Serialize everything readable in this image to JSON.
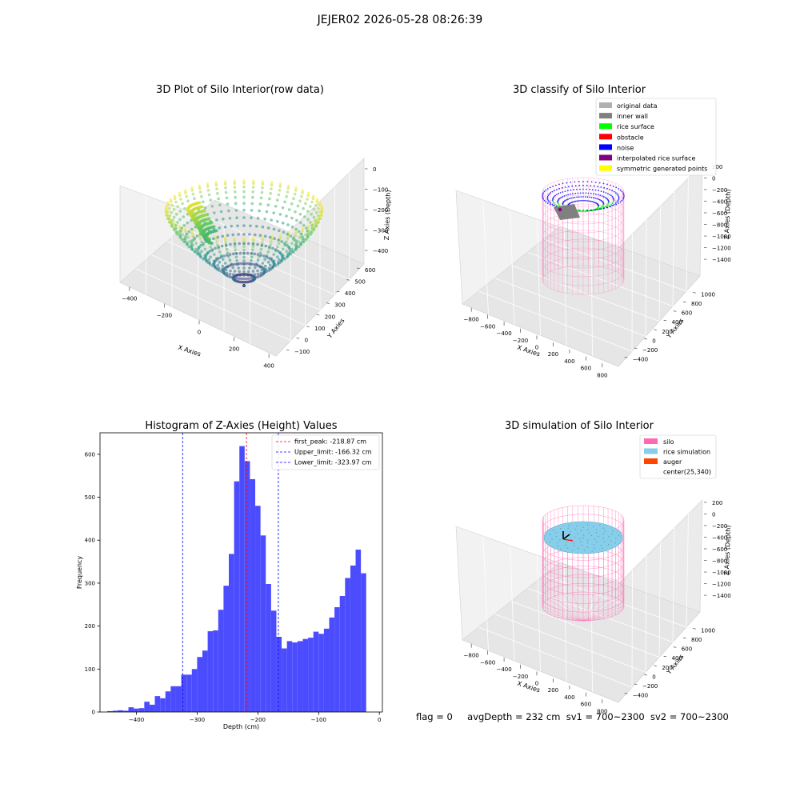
{
  "suptitle": "JEJER02 2026-05-28 08:26:39",
  "status": {
    "flag": "flag = 0",
    "avg_depth": "avgDepth = 232 cm",
    "sv1": "sv1 = 700~2300",
    "sv2": "sv2 = 700~2300"
  },
  "colors": {
    "histogram_bar": "#4c4cff",
    "peak_line": "#ff0000",
    "limit_line": "#0000ff",
    "silo": "#ff69b4",
    "rice_simulation": "#87ceeb",
    "auger": "#ff4500",
    "inner_wall": "#808080",
    "rice_surface": "#00ff00",
    "obstacle": "#ff0000",
    "noise": "#0000ff",
    "interpolated_rice_surface": "#800080",
    "symmetric_generated_points": "#ffff00",
    "original_data": "#b0b0b0"
  },
  "chart_data": [
    {
      "type": "scatter",
      "title": "3D Plot of Silo Interior(row data)",
      "xlabel": "X Axies",
      "ylabel": "Y Axies",
      "zlabel": "Z Axies (Depth)",
      "x_ticks": [
        "−400",
        "−200",
        "0",
        "200",
        "400"
      ],
      "y_ticks": [
        "−100",
        "0",
        "100",
        "200",
        "300",
        "400",
        "500",
        "600"
      ],
      "z_ticks": [
        "0",
        "−100",
        "−200",
        "−300",
        "−400"
      ],
      "colormap": "viridis"
    },
    {
      "type": "scatter",
      "title": "3D classify of Silo Interior",
      "xlabel": "X Axies",
      "ylabel": "Y Axies",
      "zlabel": "Z Axies (Depth)",
      "x_ticks": [
        "−800",
        "−600",
        "−400",
        "−200",
        "0",
        "200",
        "400",
        "600",
        "800"
      ],
      "y_ticks": [
        "−400",
        "−200",
        "0",
        "200",
        "400",
        "600",
        "800",
        "1000"
      ],
      "z_ticks": [
        "200",
        "0",
        "−200",
        "−400",
        "−600",
        "−800",
        "−1000",
        "−1200",
        "−1400"
      ],
      "legend": [
        {
          "label": "original data",
          "color": "#b0b0b0"
        },
        {
          "label": "inner wall",
          "color": "#808080"
        },
        {
          "label": "rice surface",
          "color": "#00ff00"
        },
        {
          "label": "obstacle",
          "color": "#ff0000"
        },
        {
          "label": "noise",
          "color": "#0000ff"
        },
        {
          "label": "interpolated rice surface",
          "color": "#800080"
        },
        {
          "label": "symmetric generated points",
          "color": "#ffff00"
        }
      ],
      "legend_position": "top-right"
    },
    {
      "type": "bar",
      "title": "Histogram of Z-Axies (Height) Values",
      "xlabel": "Depth (cm)",
      "ylabel": "Frequency",
      "xlim": [
        -460,
        5
      ],
      "ylim": [
        0,
        650
      ],
      "x_ticks": [
        -400,
        -300,
        -200,
        -100,
        0
      ],
      "y_ticks": [
        0,
        100,
        200,
        300,
        400,
        500,
        600
      ],
      "bin_edges_start": -448,
      "bin_width": 8.7,
      "values": [
        2,
        3,
        4,
        3,
        11,
        8,
        9,
        24,
        17,
        37,
        32,
        48,
        60,
        60,
        87,
        87,
        100,
        128,
        143,
        188,
        190,
        238,
        294,
        368,
        537,
        619,
        584,
        542,
        480,
        411,
        298,
        236,
        175,
        148,
        165,
        162,
        165,
        170,
        173,
        187,
        182,
        194,
        220,
        244,
        270,
        312,
        341,
        378,
        323
      ],
      "vlines": [
        {
          "label": "first_peak: -218.87 cm",
          "x": -218.87,
          "color": "#ff0000"
        },
        {
          "label": "Upper_limit: -166.32 cm",
          "x": -166.32,
          "color": "#0000ff"
        },
        {
          "label": "Lower_limit: -323.97 cm",
          "x": -323.97,
          "color": "#0000ff"
        }
      ],
      "legend_position": "top-right",
      "grid": false
    },
    {
      "type": "scatter",
      "title": "3D simulation of Silo Interior",
      "xlabel": "X Axies",
      "ylabel": "Y Axies",
      "zlabel": "Z Axies (Depth)",
      "x_ticks": [
        "−800",
        "−600",
        "−400",
        "−200",
        "0",
        "200",
        "400",
        "600",
        "800"
      ],
      "y_ticks": [
        "−400",
        "−200",
        "0",
        "200",
        "400",
        "600",
        "800",
        "1000"
      ],
      "z_ticks": [
        "200",
        "0",
        "−200",
        "−400",
        "−600",
        "−800",
        "−1000",
        "−1200",
        "−1400"
      ],
      "legend": [
        {
          "label": "silo",
          "color": "#ff69b4"
        },
        {
          "label": "rice simulation",
          "color": "#87ceeb"
        },
        {
          "label": "auger",
          "color": "#ff4500"
        },
        {
          "label": "center(25,340)",
          "color": ""
        }
      ],
      "legend_position": "top-right"
    }
  ]
}
